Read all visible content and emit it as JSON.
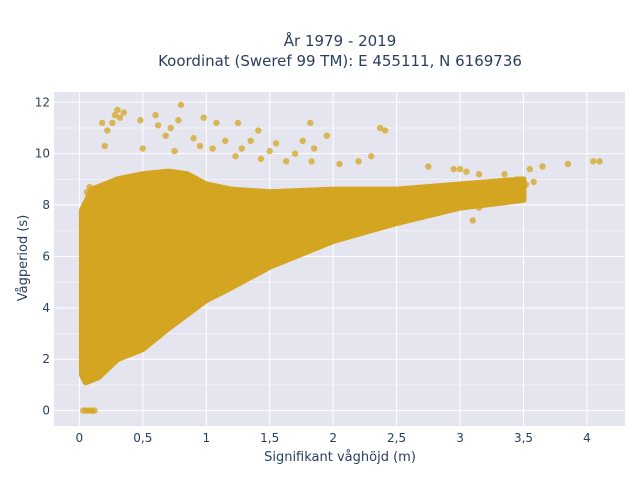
{
  "chart_data": {
    "type": "scatter",
    "title_lines": [
      "År 1979 - 2019",
      "Koordinat (Sweref 99 TM): E 455111, N 6169736"
    ],
    "xlabel": "Signifikant våghöjd (m)",
    "ylabel": "Vågperiod (s)",
    "xlim": [
      -0.2,
      4.3
    ],
    "ylim": [
      -0.6,
      12.4
    ],
    "x_ticks": [
      0,
      0.5,
      1,
      1.5,
      2,
      2.5,
      3,
      3.5,
      4
    ],
    "x_tick_labels": [
      "0",
      "0,5",
      "1",
      "1,5",
      "2",
      "2,5",
      "3",
      "3,5",
      "4"
    ],
    "y_ticks": [
      0,
      2,
      4,
      6,
      8,
      10,
      12
    ],
    "y_tick_labels": [
      "0",
      "2",
      "4",
      "6",
      "8",
      "10",
      "12"
    ],
    "grid": true,
    "background_color": "#e5e5f0",
    "marker_color": "#d4a520",
    "marker_opacity": 0.75,
    "dense_region": {
      "upper_edge": [
        [
          0.02,
          7.8
        ],
        [
          0.1,
          8.6
        ],
        [
          0.3,
          9.0
        ],
        [
          0.5,
          9.2
        ],
        [
          0.7,
          9.3
        ],
        [
          0.85,
          9.2
        ],
        [
          1.0,
          8.8
        ],
        [
          1.2,
          8.6
        ],
        [
          1.5,
          8.5
        ],
        [
          2.0,
          8.6
        ],
        [
          2.5,
          8.6
        ],
        [
          3.0,
          8.8
        ],
        [
          3.5,
          9.0
        ]
      ],
      "lower_edge": [
        [
          3.5,
          8.2
        ],
        [
          3.0,
          7.9
        ],
        [
          2.5,
          7.3
        ],
        [
          2.0,
          6.6
        ],
        [
          1.5,
          5.6
        ],
        [
          1.2,
          4.8
        ],
        [
          1.0,
          4.3
        ],
        [
          0.7,
          3.2
        ],
        [
          0.5,
          2.4
        ],
        [
          0.3,
          2.0
        ],
        [
          0.15,
          1.3
        ],
        [
          0.05,
          1.1
        ],
        [
          0.02,
          1.4
        ]
      ]
    },
    "points": [
      [
        0.03,
        0.0
      ],
      [
        0.05,
        0.0
      ],
      [
        0.07,
        0.0
      ],
      [
        0.09,
        0.0
      ],
      [
        0.1,
        0.0
      ],
      [
        0.12,
        0.0
      ],
      [
        0.8,
        11.9
      ],
      [
        0.3,
        11.7
      ],
      [
        0.35,
        11.6
      ],
      [
        0.28,
        11.5
      ],
      [
        0.32,
        11.4
      ],
      [
        0.6,
        11.5
      ],
      [
        0.18,
        11.2
      ],
      [
        0.26,
        11.2
      ],
      [
        0.48,
        11.3
      ],
      [
        0.62,
        11.1
      ],
      [
        0.72,
        11.0
      ],
      [
        0.78,
        11.3
      ],
      [
        0.98,
        11.4
      ],
      [
        1.08,
        11.2
      ],
      [
        1.25,
        11.2
      ],
      [
        1.41,
        10.9
      ],
      [
        1.82,
        11.2
      ],
      [
        2.37,
        11.0
      ],
      [
        2.41,
        10.9
      ],
      [
        0.22,
        10.9
      ],
      [
        0.68,
        10.7
      ],
      [
        0.9,
        10.6
      ],
      [
        1.15,
        10.5
      ],
      [
        1.35,
        10.5
      ],
      [
        1.55,
        10.4
      ],
      [
        1.76,
        10.5
      ],
      [
        1.95,
        10.7
      ],
      [
        0.2,
        10.3
      ],
      [
        0.5,
        10.2
      ],
      [
        0.75,
        10.1
      ],
      [
        0.95,
        10.3
      ],
      [
        1.05,
        10.2
      ],
      [
        1.28,
        10.2
      ],
      [
        1.5,
        10.1
      ],
      [
        1.7,
        10.0
      ],
      [
        1.85,
        10.2
      ],
      [
        1.23,
        9.9
      ],
      [
        1.43,
        9.8
      ],
      [
        1.63,
        9.7
      ],
      [
        1.83,
        9.7
      ],
      [
        2.05,
        9.6
      ],
      [
        2.2,
        9.7
      ],
      [
        2.3,
        9.9
      ],
      [
        2.75,
        9.5
      ],
      [
        2.95,
        9.4
      ],
      [
        3.0,
        9.4
      ],
      [
        3.05,
        9.3
      ],
      [
        3.15,
        9.2
      ],
      [
        3.35,
        9.2
      ],
      [
        3.55,
        9.4
      ],
      [
        3.65,
        9.5
      ],
      [
        3.85,
        9.6
      ],
      [
        4.05,
        9.7
      ],
      [
        4.1,
        9.7
      ],
      [
        3.45,
        9.0
      ],
      [
        3.52,
        8.8
      ],
      [
        3.58,
        8.9
      ],
      [
        3.4,
        8.6
      ],
      [
        3.3,
        8.3
      ],
      [
        3.48,
        8.5
      ],
      [
        3.25,
        8.1
      ],
      [
        3.15,
        7.9
      ],
      [
        3.1,
        7.4
      ],
      [
        2.6,
        7.8
      ],
      [
        0.08,
        8.7
      ],
      [
        0.06,
        8.5
      ]
    ]
  }
}
